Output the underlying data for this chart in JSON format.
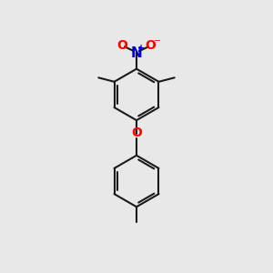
{
  "bg_color": "#e8e8e8",
  "bond_color": "#1a1a1a",
  "oxygen_color": "#ff0000",
  "nitrogen_color": "#0000cd",
  "line_width": 1.5,
  "font_size_atom": 10,
  "fig_size": [
    3.0,
    3.0
  ],
  "dpi": 100,
  "xlim": [
    0,
    10
  ],
  "ylim": [
    0,
    10
  ]
}
